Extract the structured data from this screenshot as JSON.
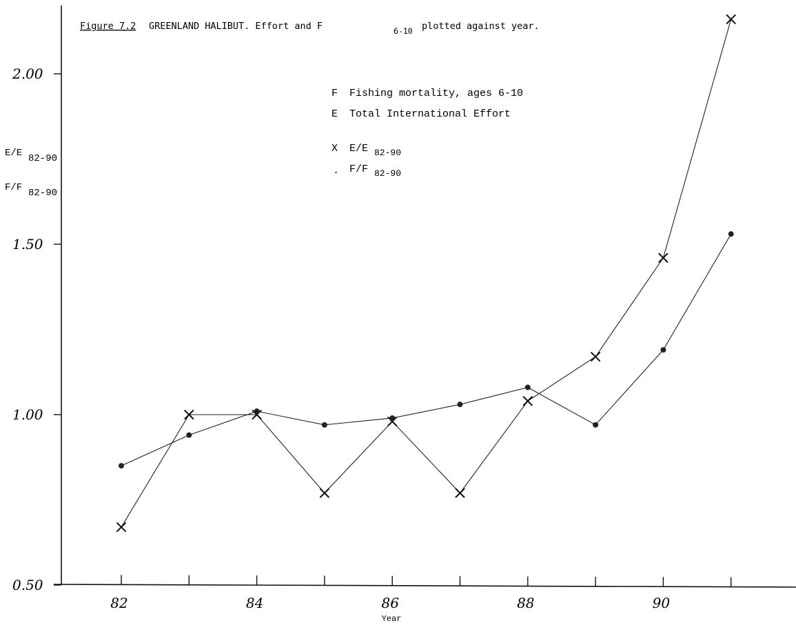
{
  "figure": {
    "label": "Figure 7.2",
    "title_main": "GREENLAND HALIBUT. Effort and F",
    "title_sub": "6-10",
    "title_tail": "plotted against year."
  },
  "legend": {
    "line1_code": "F",
    "line1_text": "Fishing mortality, ages 6-10",
    "line2_code": "E",
    "line2_text": "Total International Effort",
    "x_symbol": "X",
    "x_label_main": "E/E",
    "x_label_sub": "82-90",
    "dot_symbol": ".",
    "dot_label_main": "F/F",
    "dot_label_sub": "82-90"
  },
  "chart_data": {
    "type": "line",
    "xlabel": "Year",
    "ylabel_lines": [
      {
        "main": "E/E",
        "sub": "82-90"
      },
      {
        "main": "F/F",
        "sub": "82-90"
      }
    ],
    "x_ticks": [
      82,
      83,
      84,
      85,
      86,
      87,
      88,
      89,
      90,
      91
    ],
    "x_tick_labels": [
      {
        "x": 82,
        "label": "82"
      },
      {
        "x": 84,
        "label": "84"
      },
      {
        "x": 86,
        "label": "86"
      },
      {
        "x": 88,
        "label": "88"
      },
      {
        "x": 90,
        "label": "90"
      }
    ],
    "y_ticks": [
      {
        "y": 0.5,
        "label": "0.50"
      },
      {
        "y": 1.0,
        "label": "1.00"
      },
      {
        "y": 1.5,
        "label": "1.50"
      },
      {
        "y": 2.0,
        "label": "2.00"
      }
    ],
    "xlim": [
      81.02,
      91.98
    ],
    "ylim": [
      0.5,
      2.2
    ],
    "grid": false,
    "series": [
      {
        "name": "E/E82-90",
        "marker": "x",
        "x": [
          82,
          83,
          84,
          85,
          86,
          87,
          88,
          89,
          90,
          91
        ],
        "values": [
          0.67,
          1.0,
          1.0,
          0.77,
          0.98,
          0.77,
          1.04,
          1.17,
          1.46,
          2.16
        ]
      },
      {
        "name": "F/F82-90",
        "marker": "dot",
        "x": [
          82,
          83,
          84,
          85,
          86,
          87,
          88,
          89,
          90,
          91
        ],
        "values": [
          0.85,
          0.94,
          1.01,
          0.97,
          0.99,
          1.03,
          1.08,
          0.97,
          1.19,
          1.53
        ]
      }
    ]
  }
}
